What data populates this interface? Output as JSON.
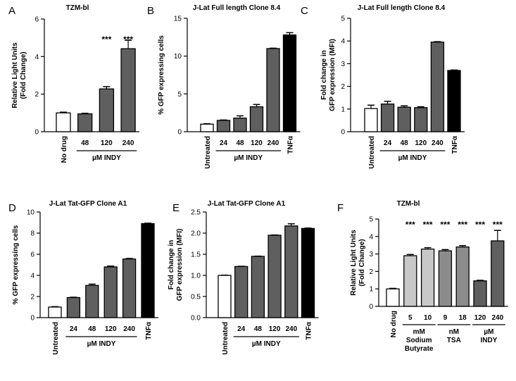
{
  "colors": {
    "white": "#ffffff",
    "gray": "#5f5f5f",
    "black": "#000000",
    "light_gray": "#c8c8c8",
    "mid_gray": "#8c8c8c"
  },
  "chart_data": [
    {
      "type": "bar",
      "panel": "A",
      "title": "TZM-bl",
      "ylabel": [
        "Relative Light Units",
        "(Fold Change)"
      ],
      "ylim": [
        0,
        6
      ],
      "yticks": [
        0,
        2,
        4,
        6
      ],
      "categories": [
        "No drug",
        "48",
        "120",
        "240"
      ],
      "values": [
        1.0,
        0.95,
        2.28,
        4.42
      ],
      "errors": [
        0.04,
        0.03,
        0.12,
        0.45
      ],
      "bar_colors": [
        "white",
        "gray",
        "gray",
        "gray"
      ],
      "significance": [
        "",
        "",
        "***",
        "***"
      ],
      "groups": [
        {
          "label": "µM INDY",
          "from": 1,
          "to": 3
        }
      ]
    },
    {
      "type": "bar",
      "panel": "B",
      "title": "J-Lat Full length Clone 8.4",
      "ylabel": [
        "% GFP expressing cells"
      ],
      "ylim": [
        0,
        15
      ],
      "yticks": [
        0,
        5,
        10,
        15
      ],
      "categories": [
        "Untreated",
        "24",
        "48",
        "120",
        "240",
        "TNFα"
      ],
      "values": [
        1.0,
        1.5,
        1.8,
        3.3,
        11.0,
        12.8
      ],
      "errors": [
        0.05,
        0.05,
        0.3,
        0.3,
        0.05,
        0.3
      ],
      "bar_colors": [
        "white",
        "gray",
        "gray",
        "gray",
        "gray",
        "black"
      ],
      "significance": [
        "",
        "",
        "",
        "",
        "",
        ""
      ],
      "groups": [
        {
          "label": "µM INDY",
          "from": 1,
          "to": 4
        }
      ]
    },
    {
      "type": "bar",
      "panel": "C",
      "title": "J-Lat Full length Clone 8.4",
      "ylabel": [
        "Fold change in",
        "GFP expression (MFI)"
      ],
      "ylim": [
        0,
        5
      ],
      "yticks": [
        0,
        1,
        2,
        3,
        4,
        5
      ],
      "categories": [
        "Untreated",
        "24",
        "48",
        "120",
        "240",
        "TNFα"
      ],
      "values": [
        1.02,
        1.22,
        1.08,
        1.06,
        3.95,
        2.7
      ],
      "errors": [
        0.15,
        0.12,
        0.06,
        0.04,
        0.02,
        0.02
      ],
      "bar_colors": [
        "white",
        "gray",
        "gray",
        "gray",
        "gray",
        "black"
      ],
      "significance": [
        "",
        "",
        "",
        "",
        "",
        ""
      ],
      "groups": [
        {
          "label": "µM INDY",
          "from": 1,
          "to": 4
        }
      ]
    },
    {
      "type": "bar",
      "panel": "D",
      "title": "J-Lat Tat-GFP Clone A1",
      "ylabel": [
        "% GFP expressing cells"
      ],
      "ylim": [
        0,
        10
      ],
      "yticks": [
        0,
        2,
        4,
        6,
        8,
        10
      ],
      "categories": [
        "Untreated",
        "24",
        "48",
        "120",
        "240",
        "TNFα"
      ],
      "values": [
        1.0,
        1.9,
        3.05,
        4.8,
        5.55,
        8.9
      ],
      "errors": [
        0.04,
        0.03,
        0.12,
        0.08,
        0.05,
        0.04
      ],
      "bar_colors": [
        "white",
        "gray",
        "gray",
        "gray",
        "gray",
        "black"
      ],
      "significance": [
        "",
        "",
        "",
        "",
        "",
        ""
      ],
      "groups": [
        {
          "label": "µM INDY",
          "from": 1,
          "to": 4
        }
      ]
    },
    {
      "type": "bar",
      "panel": "E",
      "title": "J-Lat Tat-GFP Clone A1",
      "ylabel": [
        "Fold change in",
        "GFP expression (MFI)"
      ],
      "ylim": [
        0,
        2.5
      ],
      "yticks": [
        0,
        0.5,
        1.0,
        1.5,
        2.0,
        2.5
      ],
      "ytick_labels": [
        "0.0",
        "0.5",
        "1.0",
        "1.5",
        "2.0",
        "2.5"
      ],
      "categories": [
        "Untreated",
        "24",
        "48",
        "120",
        "240",
        "TNFα"
      ],
      "values": [
        1.0,
        1.21,
        1.45,
        1.95,
        2.17,
        2.11
      ],
      "errors": [
        0.005,
        0.005,
        0.005,
        0.005,
        0.05,
        0.01
      ],
      "bar_colors": [
        "white",
        "gray",
        "gray",
        "gray",
        "gray",
        "black"
      ],
      "significance": [
        "",
        "",
        "",
        "",
        "",
        ""
      ],
      "groups": [
        {
          "label": "µM INDY",
          "from": 1,
          "to": 4
        }
      ]
    },
    {
      "type": "bar",
      "panel": "F",
      "title": "TZM-bl",
      "ylabel": [
        "Relative Light Units",
        "(Fold Change)"
      ],
      "ylim": [
        0,
        5
      ],
      "yticks": [
        0,
        1,
        2,
        3,
        4,
        5
      ],
      "categories": [
        "No drug",
        "5",
        "10",
        "9",
        "18",
        "120",
        "240"
      ],
      "values": [
        1.0,
        2.9,
        3.28,
        3.18,
        3.4,
        1.46,
        3.75
      ],
      "errors": [
        0.03,
        0.07,
        0.08,
        0.07,
        0.08,
        0.03,
        0.6
      ],
      "bar_colors": [
        "white",
        "light_gray",
        "light_gray",
        "mid_gray",
        "mid_gray",
        "gray",
        "gray"
      ],
      "significance": [
        "",
        "***",
        "***",
        "***",
        "***",
        "***",
        "***"
      ],
      "groups": [
        {
          "label": "mM",
          "sublabels": [
            "Sodium",
            "Butyrate"
          ],
          "from": 1,
          "to": 2
        },
        {
          "label": "nM",
          "sublabels": [
            "TSA"
          ],
          "from": 3,
          "to": 4
        },
        {
          "label": "µM",
          "sublabels": [
            "INDY"
          ],
          "from": 5,
          "to": 6
        }
      ]
    }
  ]
}
